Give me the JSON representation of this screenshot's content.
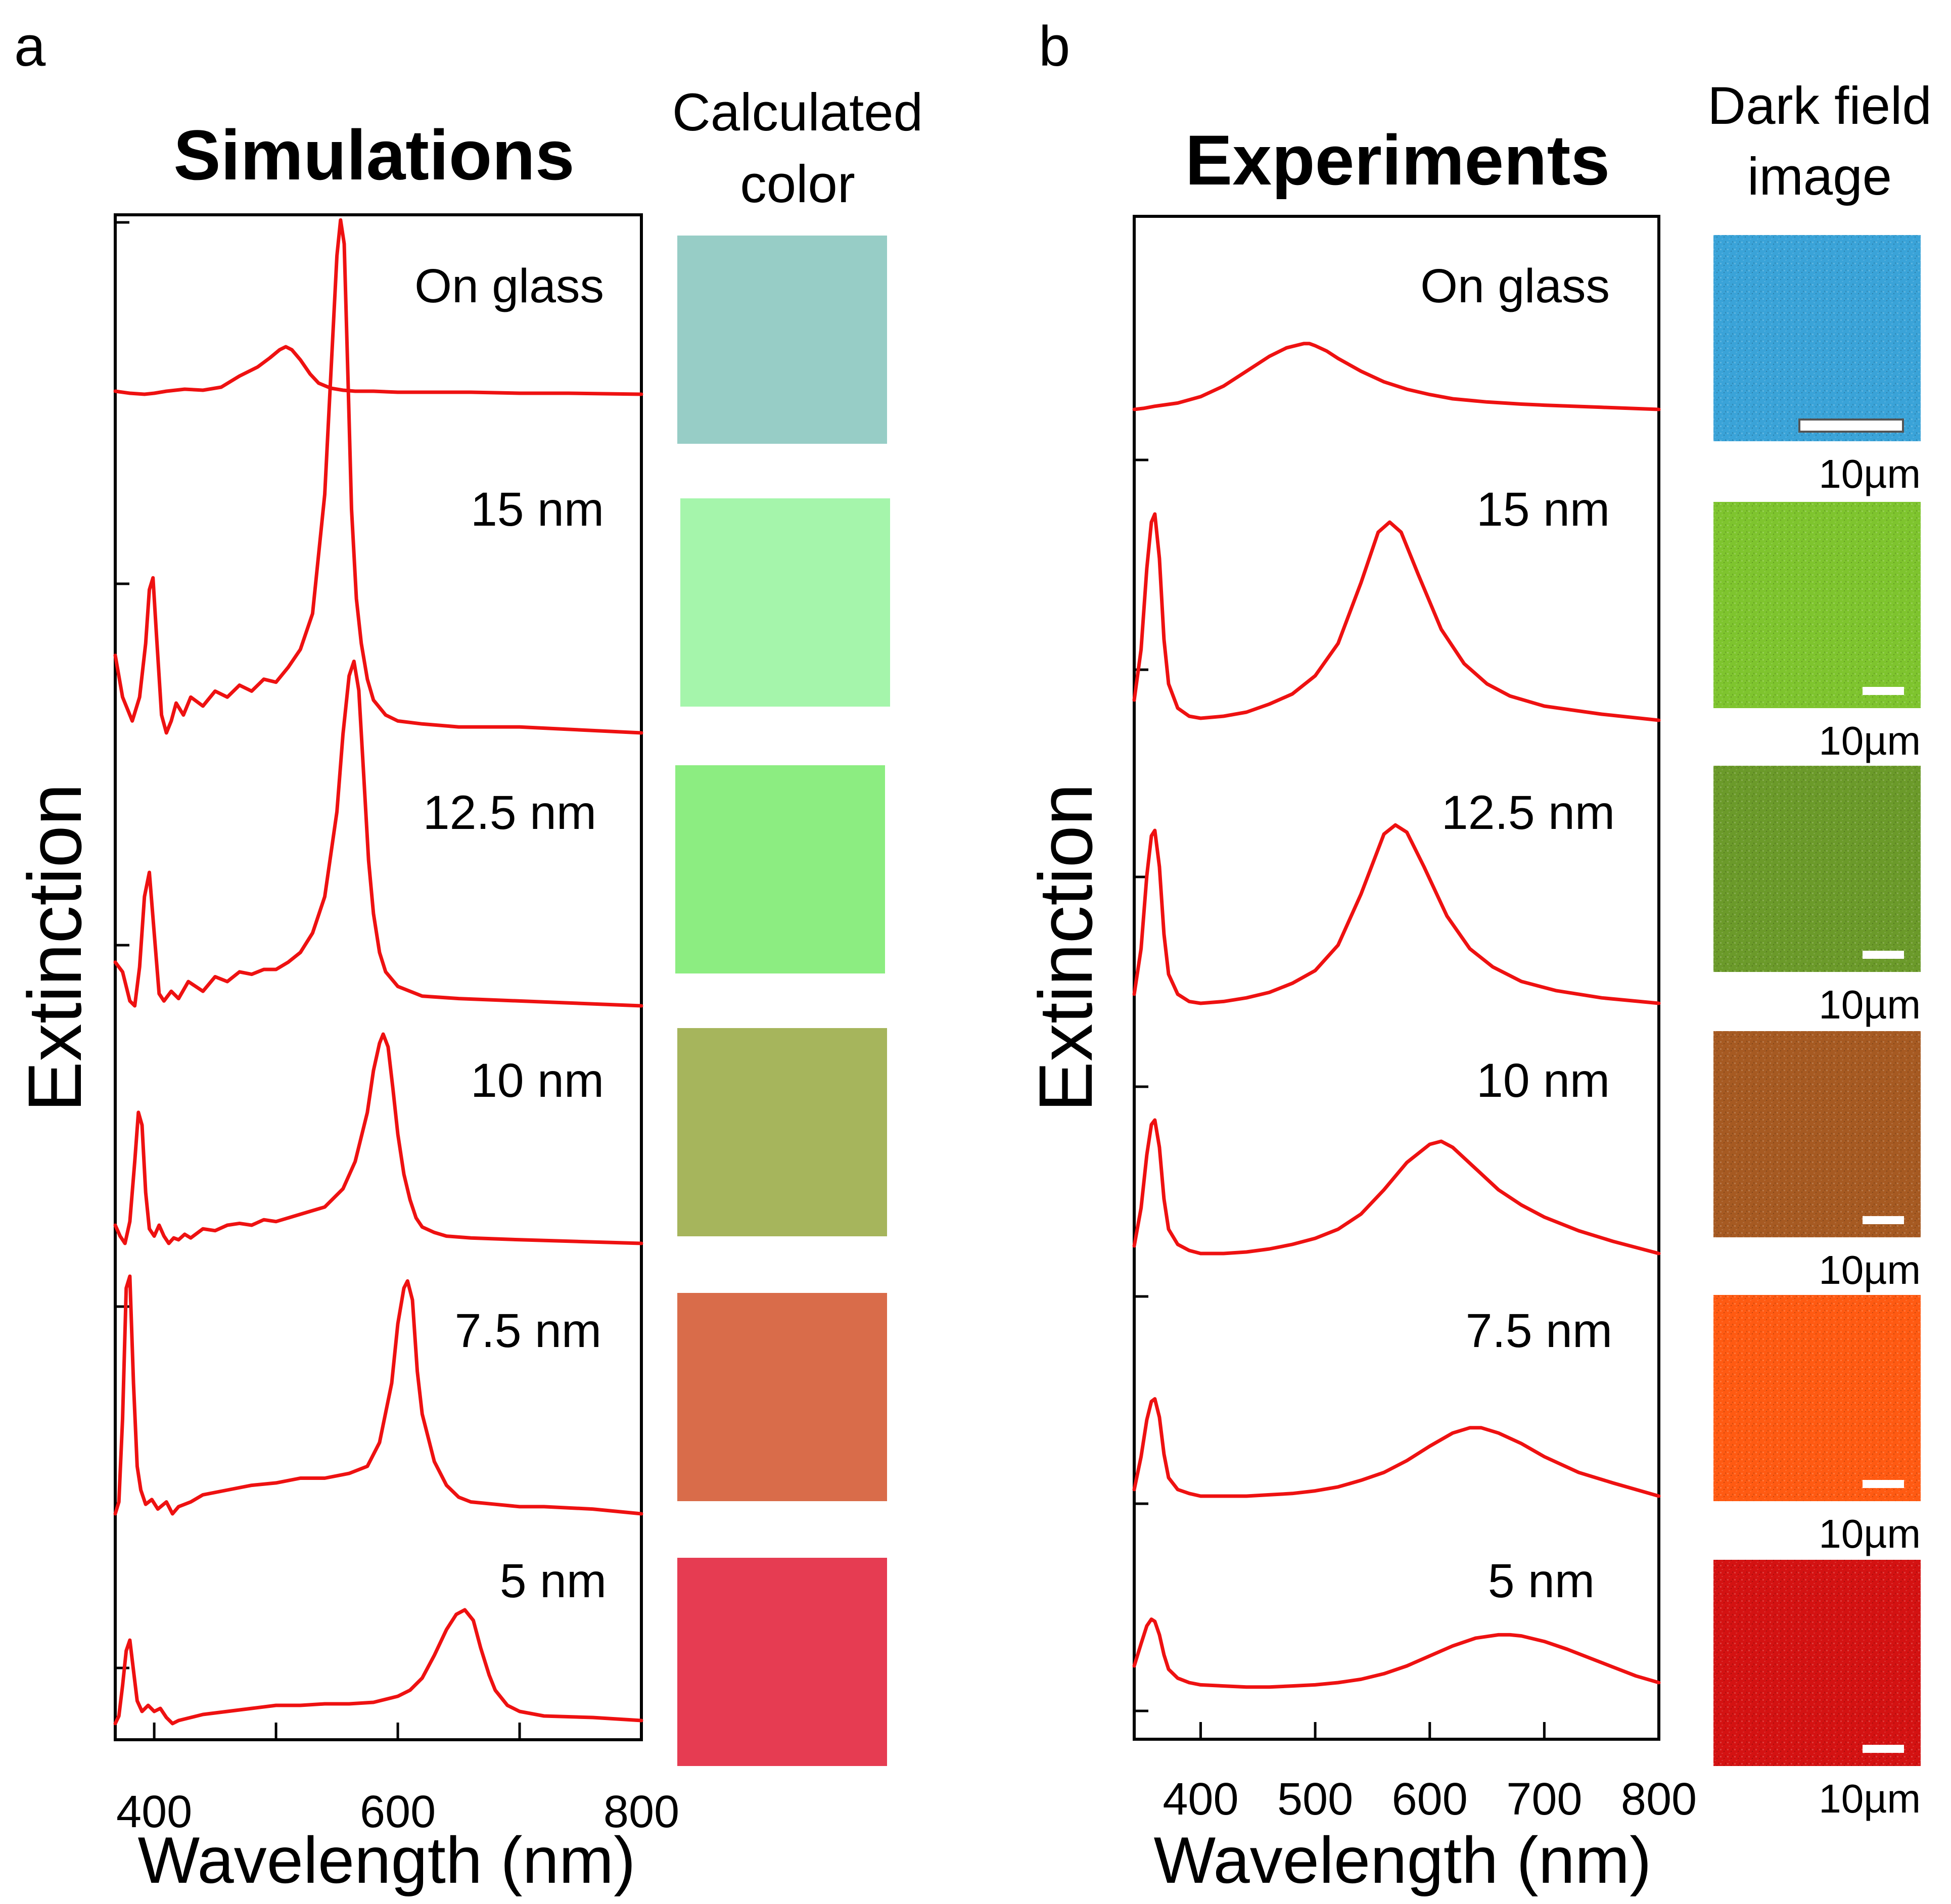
{
  "figure": {
    "panel_a_letter": "a",
    "panel_b_letter": "b",
    "colors": {
      "curve": "#ee1111",
      "axis": "#000000"
    }
  },
  "chart_data": [
    {
      "panel": "a",
      "type": "line",
      "title": "Simulations",
      "side_title_lines": [
        "Calculated",
        "color"
      ],
      "xlabel": "Wavelength (nm)",
      "ylabel": "Extinction",
      "xlim": [
        368,
        800
      ],
      "xticks": [
        400,
        600,
        800
      ],
      "xtick_labels": [
        "400",
        "600",
        "800"
      ],
      "minor_xticks": [
        500,
        700
      ],
      "ylim": [
        0,
        6
      ],
      "curve_color": "#ee1111",
      "series": [
        {
          "name": "On glass",
          "offset": 5.0,
          "x": [
            368,
            380,
            392,
            400,
            410,
            425,
            440,
            455,
            470,
            485,
            495,
            503,
            508,
            513,
            520,
            528,
            535,
            545,
            555,
            565,
            580,
            600,
            630,
            660,
            700,
            740,
            800
          ],
          "y": [
            0.03,
            0.01,
            0.0,
            0.01,
            0.03,
            0.05,
            0.04,
            0.07,
            0.18,
            0.27,
            0.36,
            0.44,
            0.47,
            0.44,
            0.34,
            0.2,
            0.11,
            0.06,
            0.04,
            0.03,
            0.03,
            0.02,
            0.02,
            0.02,
            0.01,
            0.01,
            0.0
          ]
        },
        {
          "name": "15 nm",
          "offset": 3.94,
          "x": [
            368,
            374,
            382,
            388,
            393,
            396,
            399,
            402,
            406,
            410,
            414,
            418,
            424,
            430,
            440,
            450,
            460,
            470,
            480,
            490,
            500,
            510,
            520,
            530,
            540,
            545,
            550,
            553,
            556,
            559,
            562,
            566,
            570,
            575,
            580,
            590,
            600,
            620,
            650,
            700,
            800
          ],
          "y": [
            0.26,
            0.12,
            0.04,
            0.12,
            0.3,
            0.48,
            0.52,
            0.32,
            0.06,
            0.0,
            0.04,
            0.1,
            0.06,
            0.12,
            0.09,
            0.14,
            0.12,
            0.16,
            0.14,
            0.18,
            0.17,
            0.22,
            0.28,
            0.4,
            0.8,
            1.2,
            1.6,
            1.72,
            1.64,
            1.2,
            0.75,
            0.45,
            0.3,
            0.18,
            0.11,
            0.06,
            0.04,
            0.03,
            0.02,
            0.02,
            0.0
          ]
        },
        {
          "name": "12.5 nm",
          "offset": 2.89,
          "x": [
            368,
            374,
            380,
            384,
            388,
            392,
            396,
            400,
            404,
            408,
            414,
            420,
            428,
            440,
            450,
            460,
            470,
            480,
            490,
            500,
            510,
            520,
            530,
            540,
            550,
            555,
            560,
            564,
            568,
            572,
            576,
            580,
            585,
            590,
            600,
            620,
            650,
            700,
            800
          ],
          "y": [
            0.18,
            0.14,
            0.02,
            0.0,
            0.16,
            0.45,
            0.55,
            0.3,
            0.05,
            0.02,
            0.06,
            0.03,
            0.1,
            0.06,
            0.12,
            0.1,
            0.14,
            0.13,
            0.15,
            0.15,
            0.18,
            0.22,
            0.3,
            0.45,
            0.8,
            1.12,
            1.36,
            1.42,
            1.3,
            0.95,
            0.6,
            0.38,
            0.22,
            0.14,
            0.08,
            0.04,
            0.03,
            0.02,
            0.0
          ]
        },
        {
          "name": "10 nm",
          "offset": 1.84,
          "x": [
            368,
            372,
            376,
            380,
            384,
            387,
            390,
            393,
            396,
            400,
            404,
            408,
            412,
            416,
            420,
            425,
            430,
            440,
            450,
            460,
            470,
            480,
            490,
            500,
            510,
            520,
            540,
            555,
            565,
            575,
            580,
            585,
            588,
            592,
            596,
            600,
            605,
            610,
            615,
            620,
            630,
            640,
            660,
            700,
            800
          ],
          "y": [
            0.1,
            0.04,
            0.0,
            0.12,
            0.45,
            0.72,
            0.65,
            0.28,
            0.08,
            0.04,
            0.1,
            0.04,
            0.0,
            0.03,
            0.02,
            0.05,
            0.03,
            0.08,
            0.07,
            0.1,
            0.11,
            0.1,
            0.13,
            0.12,
            0.14,
            0.16,
            0.2,
            0.3,
            0.45,
            0.72,
            0.95,
            1.1,
            1.15,
            1.08,
            0.85,
            0.6,
            0.38,
            0.24,
            0.14,
            0.09,
            0.06,
            0.04,
            0.03,
            0.02,
            0.0
          ]
        },
        {
          "name": "7.5 nm",
          "offset": 0.81,
          "x": [
            368,
            371,
            374,
            377,
            380,
            383,
            386,
            389,
            393,
            398,
            403,
            410,
            415,
            420,
            430,
            440,
            460,
            480,
            500,
            520,
            540,
            560,
            575,
            585,
            595,
            600,
            605,
            608,
            612,
            616,
            620,
            625,
            630,
            640,
            650,
            660,
            680,
            700,
            720,
            760,
            800
          ],
          "y": [
            0.0,
            0.05,
            0.4,
            0.95,
            1.0,
            0.55,
            0.2,
            0.1,
            0.04,
            0.06,
            0.02,
            0.05,
            0.0,
            0.03,
            0.05,
            0.08,
            0.1,
            0.12,
            0.13,
            0.15,
            0.15,
            0.17,
            0.2,
            0.3,
            0.55,
            0.8,
            0.95,
            0.98,
            0.9,
            0.6,
            0.42,
            0.32,
            0.22,
            0.12,
            0.07,
            0.05,
            0.04,
            0.03,
            0.03,
            0.02,
            0.0
          ]
        },
        {
          "name": "5 nm",
          "offset": 0.0,
          "x": [
            368,
            371,
            374,
            377,
            380,
            383,
            386,
            390,
            395,
            400,
            405,
            410,
            415,
            420,
            430,
            440,
            460,
            480,
            500,
            520,
            540,
            560,
            580,
            600,
            610,
            620,
            630,
            640,
            648,
            655,
            662,
            668,
            675,
            680,
            690,
            700,
            720,
            760,
            800
          ],
          "y": [
            0.0,
            0.05,
            0.25,
            0.48,
            0.55,
            0.35,
            0.15,
            0.08,
            0.12,
            0.08,
            0.1,
            0.04,
            0.0,
            0.02,
            0.04,
            0.06,
            0.08,
            0.1,
            0.12,
            0.12,
            0.13,
            0.13,
            0.14,
            0.18,
            0.22,
            0.3,
            0.45,
            0.62,
            0.72,
            0.75,
            0.68,
            0.5,
            0.32,
            0.22,
            0.12,
            0.08,
            0.05,
            0.04,
            0.02
          ]
        }
      ],
      "swatches": [
        {
          "label": "On glass",
          "color": "#97cdc6"
        },
        {
          "label": "15 nm",
          "color": "#a5f5ab"
        },
        {
          "label": "12.5 nm",
          "color": "#8ced81"
        },
        {
          "label": "10 nm",
          "color": "#a6b55c"
        },
        {
          "label": "7.5 nm",
          "color": "#d96c4a"
        },
        {
          "label": "5 nm",
          "color": "#e63c52"
        }
      ]
    },
    {
      "panel": "b",
      "type": "line",
      "title": "Experiments",
      "side_title_lines": [
        "Dark field",
        "image"
      ],
      "xlabel": "Wavelength (nm)",
      "ylabel": "Extinction",
      "xlim": [
        342,
        800
      ],
      "xticks": [
        400,
        500,
        600,
        700,
        800
      ],
      "xtick_labels": [
        "400",
        "500",
        "600",
        "700",
        "800"
      ],
      "ylim": [
        0,
        6
      ],
      "curve_color": "#ee1111",
      "series": [
        {
          "name": "On glass",
          "offset": 5.2,
          "x": [
            342,
            350,
            360,
            380,
            400,
            420,
            440,
            460,
            475,
            490,
            495,
            500,
            510,
            520,
            540,
            560,
            580,
            600,
            620,
            650,
            680,
            700,
            750,
            800
          ],
          "y": [
            0.0,
            0.01,
            0.03,
            0.06,
            0.12,
            0.22,
            0.36,
            0.5,
            0.58,
            0.62,
            0.62,
            0.6,
            0.55,
            0.48,
            0.36,
            0.26,
            0.19,
            0.14,
            0.1,
            0.07,
            0.05,
            0.04,
            0.02,
            0.0
          ]
        },
        {
          "name": "15 nm",
          "offset": 3.7,
          "x": [
            342,
            348,
            353,
            357,
            360,
            364,
            368,
            372,
            380,
            390,
            400,
            420,
            440,
            460,
            480,
            500,
            520,
            540,
            555,
            565,
            575,
            590,
            610,
            630,
            650,
            670,
            700,
            750,
            800
          ],
          "y": [
            0.1,
            0.35,
            0.75,
            0.98,
            1.02,
            0.8,
            0.4,
            0.18,
            0.06,
            0.02,
            0.01,
            0.02,
            0.04,
            0.08,
            0.13,
            0.22,
            0.38,
            0.68,
            0.93,
            0.98,
            0.93,
            0.72,
            0.45,
            0.28,
            0.18,
            0.12,
            0.07,
            0.03,
            0.0
          ]
        },
        {
          "name": "12.5 nm",
          "offset": 2.7,
          "x": [
            342,
            348,
            353,
            357,
            360,
            364,
            368,
            372,
            380,
            390,
            400,
            420,
            440,
            460,
            480,
            500,
            520,
            540,
            560,
            570,
            580,
            595,
            615,
            635,
            655,
            680,
            710,
            750,
            800
          ],
          "y": [
            0.05,
            0.3,
            0.7,
            0.92,
            0.95,
            0.75,
            0.38,
            0.16,
            0.05,
            0.01,
            0.0,
            0.01,
            0.03,
            0.06,
            0.11,
            0.18,
            0.32,
            0.6,
            0.93,
            0.98,
            0.94,
            0.75,
            0.48,
            0.3,
            0.2,
            0.12,
            0.07,
            0.03,
            0.0
          ]
        },
        {
          "name": "10 nm",
          "offset": 1.74,
          "x": [
            342,
            348,
            353,
            357,
            360,
            364,
            368,
            372,
            380,
            390,
            400,
            420,
            440,
            460,
            480,
            500,
            520,
            540,
            560,
            580,
            600,
            610,
            620,
            640,
            660,
            680,
            700,
            730,
            760,
            800
          ],
          "y": [
            0.05,
            0.3,
            0.65,
            0.85,
            0.88,
            0.7,
            0.36,
            0.16,
            0.06,
            0.02,
            0.0,
            0.0,
            0.01,
            0.03,
            0.06,
            0.1,
            0.16,
            0.26,
            0.42,
            0.6,
            0.72,
            0.74,
            0.7,
            0.56,
            0.42,
            0.32,
            0.24,
            0.15,
            0.08,
            0.0
          ]
        },
        {
          "name": "7.5 nm",
          "offset": 0.8,
          "x": [
            342,
            348,
            353,
            357,
            360,
            364,
            368,
            372,
            380,
            390,
            400,
            420,
            440,
            460,
            480,
            500,
            520,
            540,
            560,
            580,
            600,
            620,
            635,
            645,
            660,
            680,
            700,
            730,
            760,
            800
          ],
          "y": [
            0.05,
            0.3,
            0.58,
            0.72,
            0.74,
            0.6,
            0.32,
            0.14,
            0.05,
            0.02,
            0.0,
            0.0,
            0.0,
            0.01,
            0.02,
            0.04,
            0.07,
            0.12,
            0.18,
            0.27,
            0.38,
            0.48,
            0.52,
            0.52,
            0.48,
            0.4,
            0.3,
            0.18,
            0.1,
            0.0
          ]
        },
        {
          "name": "5 nm",
          "offset": 0.0,
          "x": [
            342,
            348,
            353,
            357,
            360,
            364,
            368,
            372,
            380,
            390,
            400,
            420,
            440,
            460,
            480,
            500,
            520,
            540,
            560,
            580,
            600,
            620,
            640,
            660,
            670,
            680,
            700,
            720,
            740,
            760,
            780,
            800
          ],
          "y": [
            0.2,
            0.4,
            0.56,
            0.62,
            0.6,
            0.48,
            0.3,
            0.17,
            0.09,
            0.05,
            0.03,
            0.02,
            0.01,
            0.01,
            0.02,
            0.03,
            0.05,
            0.08,
            0.13,
            0.2,
            0.29,
            0.38,
            0.45,
            0.48,
            0.48,
            0.47,
            0.42,
            0.35,
            0.27,
            0.19,
            0.11,
            0.05
          ]
        }
      ],
      "image_tiles": [
        {
          "label": "On glass",
          "color": "#3aa3d8",
          "scale_label": "10µm"
        },
        {
          "label": "15 nm",
          "color": "#7ec42e",
          "scale_label": "10µm"
        },
        {
          "label": "12.5 nm",
          "color": "#6b9a2a",
          "scale_label": "10µm"
        },
        {
          "label": "10 nm",
          "color": "#a65a22",
          "scale_label": "10µm"
        },
        {
          "label": "7.5 nm",
          "color": "#ff5a12",
          "scale_label": "10µm"
        },
        {
          "label": "5 nm",
          "color": "#d41212",
          "scale_label": "10µm"
        }
      ]
    }
  ]
}
